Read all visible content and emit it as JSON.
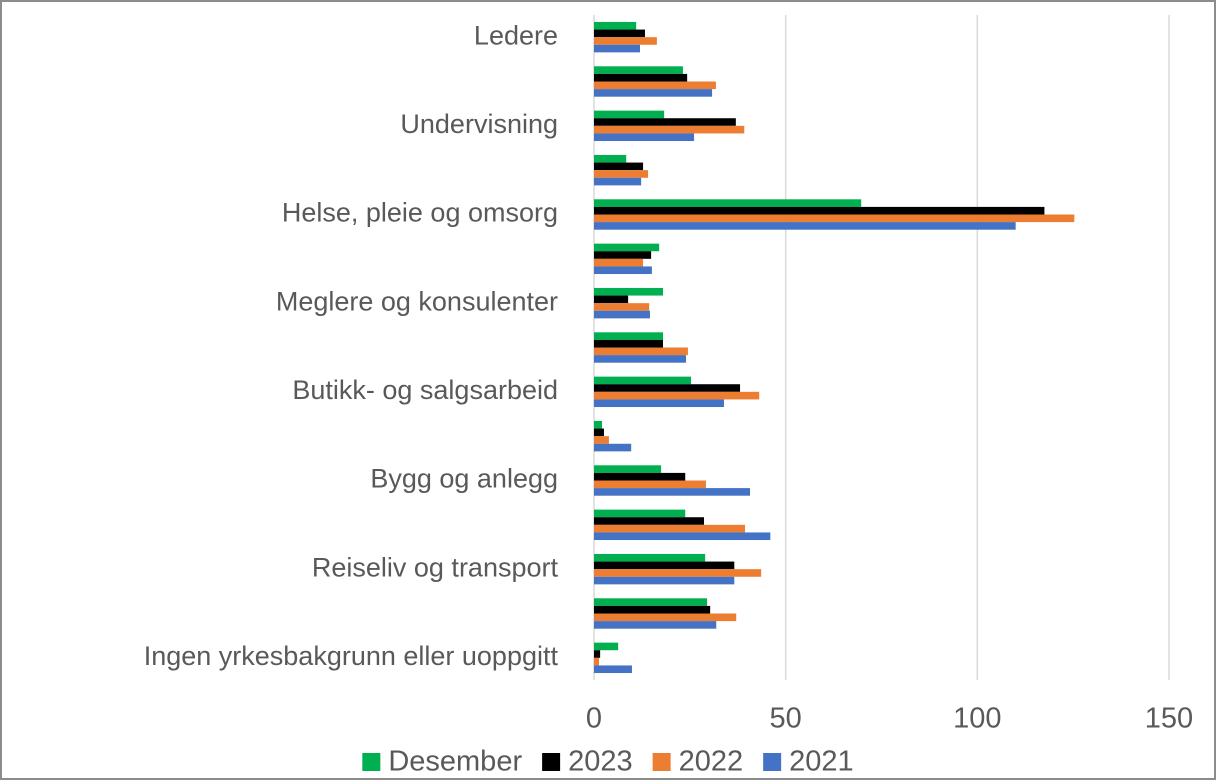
{
  "chart_data": {
    "type": "hbar",
    "categories": [
      "Ledere",
      null,
      "Undervisning",
      null,
      "Helse, pleie og omsorg",
      null,
      "Meglere og konsulenter",
      null,
      "Butikk- og salgsarbeid",
      null,
      "Bygg og anlegg",
      null,
      "Reiseliv og transport",
      null,
      "Ingen yrkesbakgrunn eller uoppgitt"
    ],
    "series": [
      {
        "name": "Desember",
        "color": "#00b050",
        "values": [
          11,
          23.2,
          18.3,
          8.4,
          69.7,
          17,
          18,
          18,
          25.3,
          2.1,
          17.5,
          23.8,
          29,
          29.5,
          6.3
        ]
      },
      {
        "name": "2023",
        "color": "#000000",
        "values": [
          13.3,
          24.3,
          37,
          12.8,
          117.5,
          14.9,
          8.9,
          18,
          38.1,
          2.6,
          23.8,
          28.7,
          36.6,
          30.3,
          1.6
        ]
      },
      {
        "name": "2022",
        "color": "#ed7d31",
        "values": [
          16.4,
          31.8,
          39.2,
          14.1,
          125.3,
          12.8,
          14.4,
          24.5,
          43.1,
          3.9,
          29.2,
          39.4,
          43.6,
          37.1,
          1.3
        ]
      },
      {
        "name": "2021",
        "color": "#4472c4",
        "values": [
          12,
          30.8,
          26.1,
          12.3,
          110,
          15.1,
          14.6,
          24,
          33.9,
          9.7,
          40.7,
          46,
          36.6,
          31.9,
          9.9
        ]
      }
    ],
    "xlim": [
      0,
      150
    ],
    "xticks": [
      0,
      50,
      100,
      150
    ],
    "grid": true,
    "legend": "bottom"
  }
}
